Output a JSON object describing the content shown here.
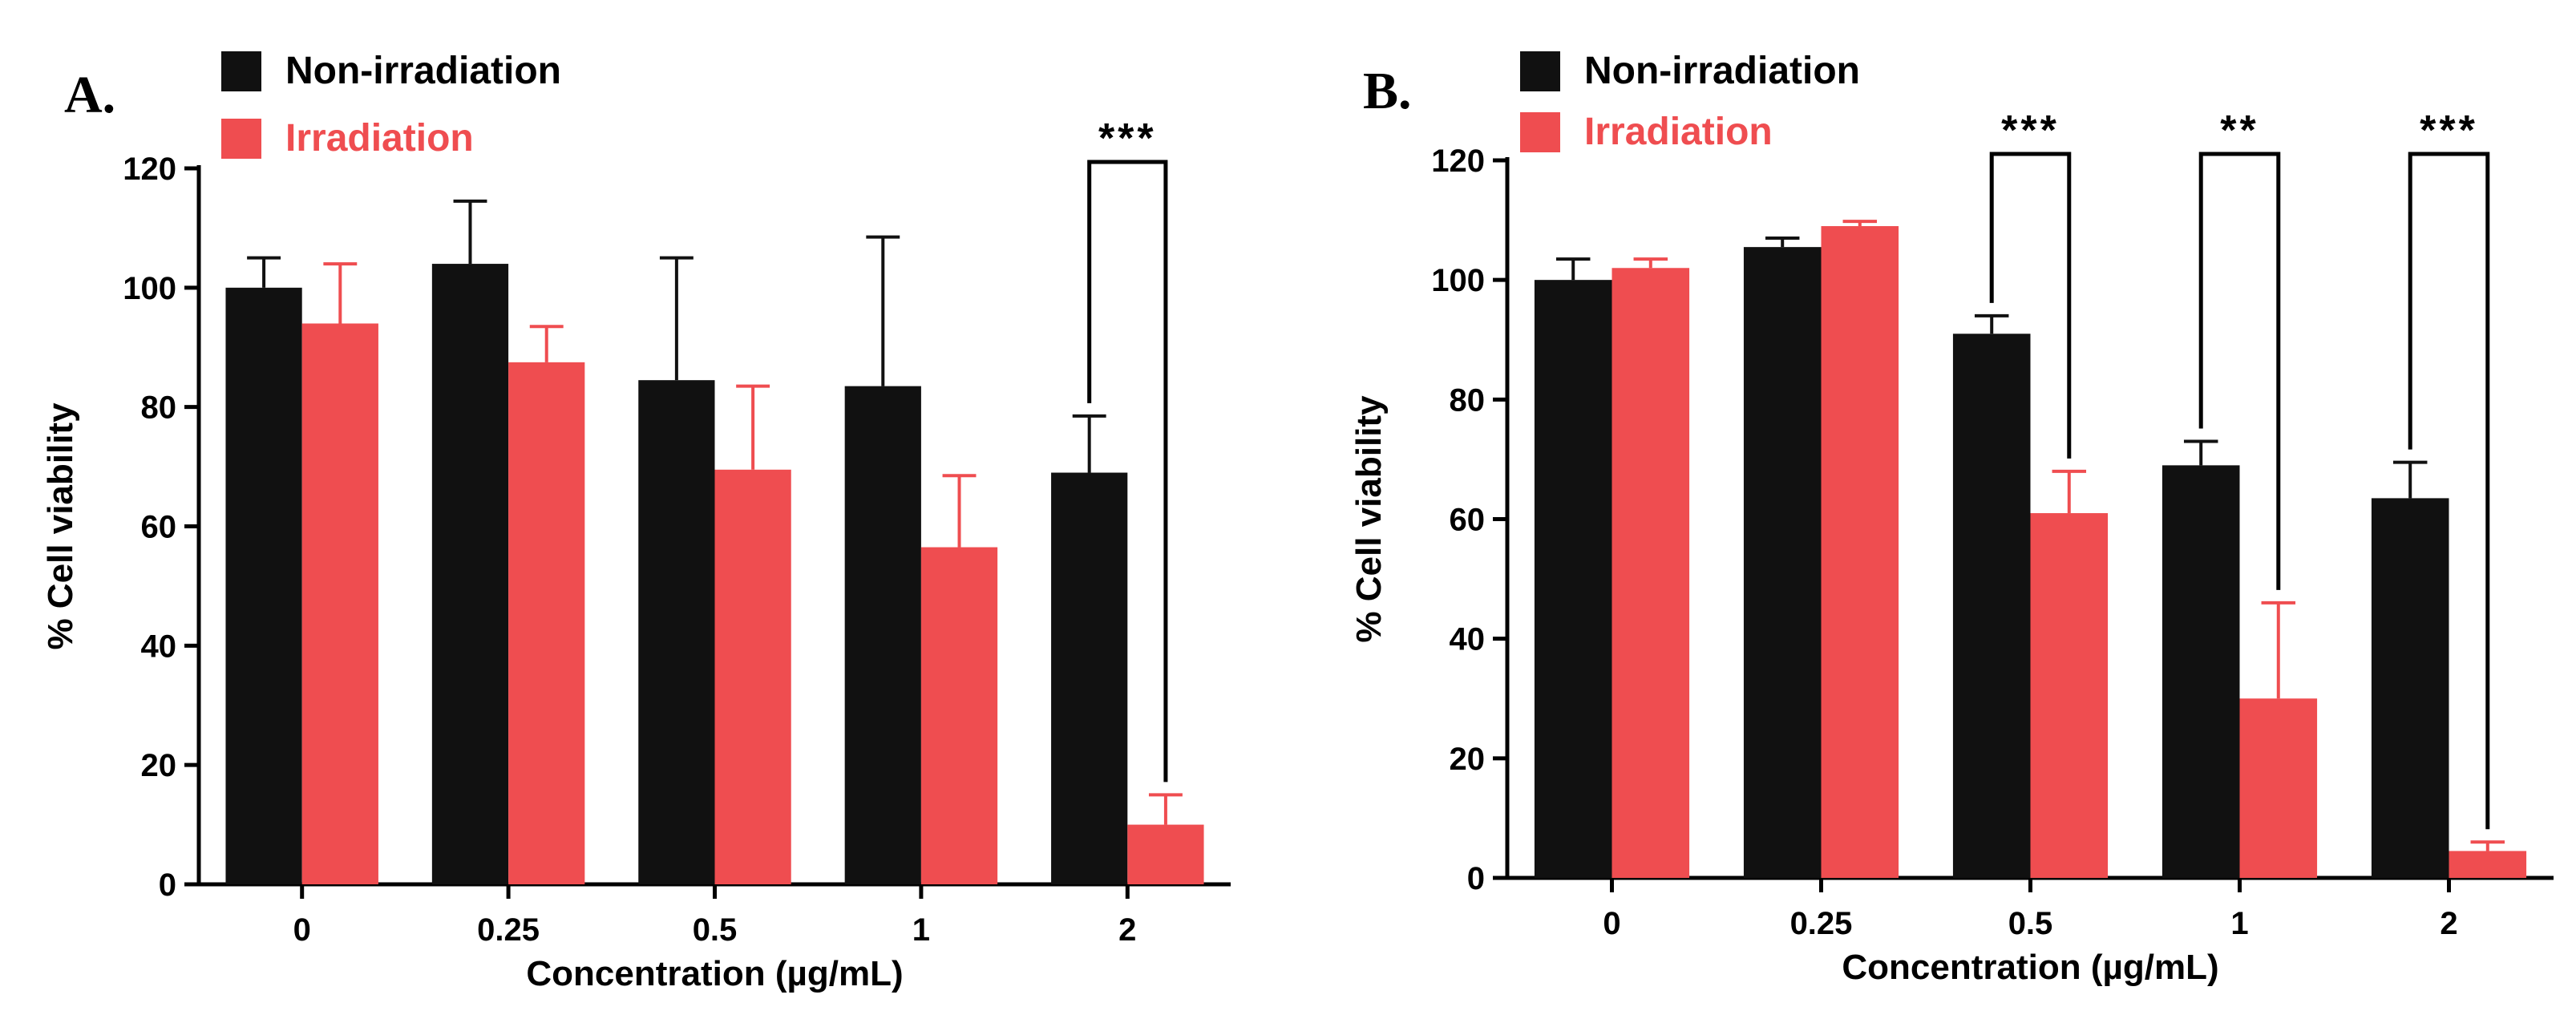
{
  "colors": {
    "non_irradiation": "#111111",
    "irradiation": "#ef4d50",
    "axis": "#000000"
  },
  "chart_data": [
    {
      "type": "bar",
      "panel_label": "A.",
      "categories": [
        "0",
        "0.25",
        "0.5",
        "1",
        "2"
      ],
      "series": [
        {
          "name": "Non-irradiation",
          "values": [
            100,
            104,
            84.5,
            83.5,
            69
          ],
          "errors": [
            5,
            10.5,
            20.5,
            25,
            9.5
          ]
        },
        {
          "name": "Irradiation",
          "values": [
            94,
            87.5,
            69.5,
            56.5,
            10
          ],
          "errors": [
            10,
            6,
            14,
            12,
            5
          ]
        }
      ],
      "xlabel": "Concentration (µg/mL)",
      "ylabel": "% Cell viability",
      "ylim": [
        0,
        120
      ],
      "yticks": [
        "0",
        "20",
        "40",
        "60",
        "80",
        "100",
        "120"
      ],
      "legend": "top-left",
      "significance": [
        {
          "category_index": 4,
          "label": "***"
        }
      ]
    },
    {
      "type": "bar",
      "panel_label": "B.",
      "categories": [
        "0",
        "0.25",
        "0.5",
        "1",
        "2"
      ],
      "series": [
        {
          "name": "Non-irradiation",
          "values": [
            100,
            105.5,
            91,
            69,
            63.5
          ],
          "errors": [
            3.5,
            1.5,
            3,
            4,
            6
          ]
        },
        {
          "name": "Irradiation",
          "values": [
            102,
            109,
            61,
            30,
            4.5
          ],
          "errors": [
            1.5,
            0.8,
            7,
            16,
            1.5
          ]
        }
      ],
      "xlabel": "Concentration (µg/mL)",
      "ylabel": "% Cell viability",
      "ylim": [
        0,
        120
      ],
      "yticks": [
        "0",
        "20",
        "40",
        "60",
        "80",
        "100",
        "120"
      ],
      "legend": "top-left",
      "significance": [
        {
          "category_index": 2,
          "label": "***"
        },
        {
          "category_index": 3,
          "label": "**"
        },
        {
          "category_index": 4,
          "label": "***"
        }
      ]
    }
  ]
}
